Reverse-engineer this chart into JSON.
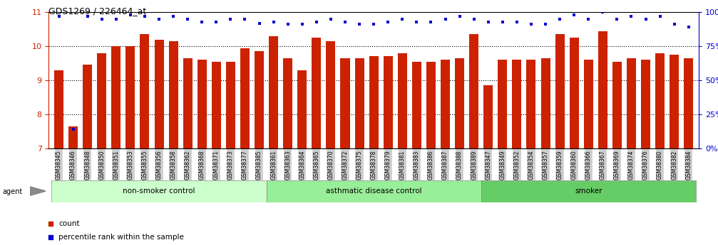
{
  "title": "GDS1269 / 226464_at",
  "categories": [
    "GSM38345",
    "GSM38346",
    "GSM38348",
    "GSM38350",
    "GSM38351",
    "GSM38353",
    "GSM38355",
    "GSM38356",
    "GSM38358",
    "GSM38362",
    "GSM38368",
    "GSM38371",
    "GSM38373",
    "GSM38377",
    "GSM38385",
    "GSM38361",
    "GSM38363",
    "GSM38364",
    "GSM38365",
    "GSM38370",
    "GSM38372",
    "GSM38375",
    "GSM38378",
    "GSM38379",
    "GSM38381",
    "GSM38383",
    "GSM38386",
    "GSM38387",
    "GSM38388",
    "GSM38389",
    "GSM38347",
    "GSM38349",
    "GSM38352",
    "GSM38354",
    "GSM38357",
    "GSM38359",
    "GSM38360",
    "GSM38366",
    "GSM38367",
    "GSM38369",
    "GSM38374",
    "GSM38376",
    "GSM38380",
    "GSM38382",
    "GSM38384"
  ],
  "bar_values": [
    9.3,
    7.65,
    9.45,
    9.8,
    10.0,
    10.0,
    10.35,
    10.2,
    10.15,
    9.65,
    9.6,
    9.55,
    9.55,
    9.95,
    9.85,
    10.3,
    9.65,
    9.3,
    10.25,
    10.15,
    9.65,
    9.65,
    9.7,
    9.7,
    9.8,
    9.55,
    9.55,
    9.6,
    9.65,
    10.35,
    8.85,
    9.6,
    9.6,
    9.6,
    9.65,
    10.35,
    10.25,
    9.6,
    10.45,
    9.55,
    9.65,
    9.6,
    9.8,
    9.75,
    9.65
  ],
  "percentile_values": [
    97,
    14,
    97,
    95,
    95,
    98,
    97,
    95,
    97,
    95,
    93,
    93,
    95,
    95,
    92,
    93,
    91,
    91,
    93,
    95,
    93,
    91,
    91,
    93,
    95,
    93,
    93,
    95,
    97,
    95,
    93,
    93,
    93,
    91,
    91,
    95,
    98,
    95,
    100,
    95,
    97,
    95,
    97,
    91,
    89
  ],
  "groups": [
    {
      "label": "non-smoker control",
      "start": 0,
      "end": 15,
      "color": "#ccffcc"
    },
    {
      "label": "asthmatic disease control",
      "start": 15,
      "end": 30,
      "color": "#99ee99"
    },
    {
      "label": "smoker",
      "start": 30,
      "end": 45,
      "color": "#66cc66"
    }
  ],
  "ylim": [
    7,
    11
  ],
  "yticks_left": [
    7,
    8,
    9,
    10,
    11
  ],
  "yticks_right": [
    0,
    25,
    50,
    75,
    100
  ],
  "bar_color": "#cc2200",
  "dot_color": "#0000cc",
  "title_fontsize": 9,
  "tick_fontsize": 6.5,
  "label_fontsize": 8,
  "xtick_fontsize": 5.5
}
